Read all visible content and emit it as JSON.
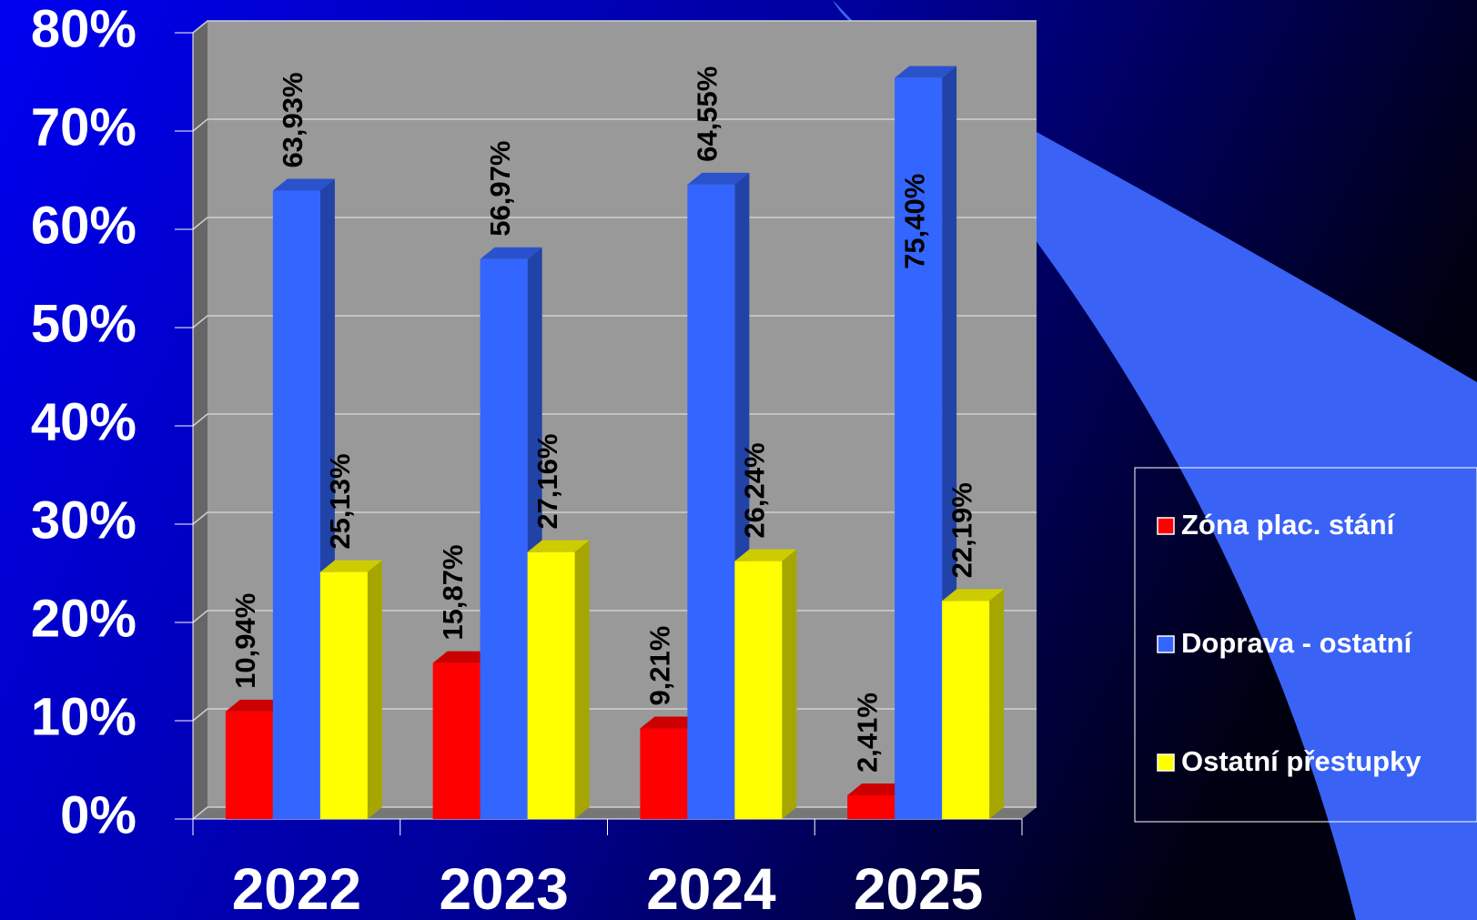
{
  "chart_data": {
    "type": "bar3d",
    "categories": [
      "2022",
      "2023",
      "2024",
      "2025"
    ],
    "series": [
      {
        "name": "Zóna plac. stání",
        "color": "#ff0000",
        "values": [
          10.94,
          15.87,
          9.21,
          2.41
        ],
        "value_labels": [
          "10,94%",
          "15,87%",
          "9,21%",
          "2,41%"
        ]
      },
      {
        "name": "Doprava - ostatní",
        "color": "#3366ff",
        "values": [
          63.93,
          56.97,
          64.55,
          75.4
        ],
        "value_labels": [
          "63,93%",
          "56,97%",
          "64,55%",
          "75,40%"
        ]
      },
      {
        "name": "Ostatní přestupky",
        "color": "#ffff00",
        "values": [
          25.13,
          27.16,
          26.24,
          22.19
        ],
        "value_labels": [
          "25,13%",
          "27,16%",
          "26,24%",
          "22,19%"
        ]
      }
    ],
    "ylim": [
      0,
      80
    ],
    "yticks": [
      {
        "value": 0,
        "label": "0%"
      },
      {
        "value": 10,
        "label": "10%"
      },
      {
        "value": 20,
        "label": "20%"
      },
      {
        "value": 30,
        "label": "30%"
      },
      {
        "value": 40,
        "label": "40%"
      },
      {
        "value": 50,
        "label": "50%"
      },
      {
        "value": 60,
        "label": "60%"
      },
      {
        "value": 70,
        "label": "70%"
      },
      {
        "value": 80,
        "label": "80%"
      }
    ],
    "grid": true,
    "legend": "right"
  }
}
